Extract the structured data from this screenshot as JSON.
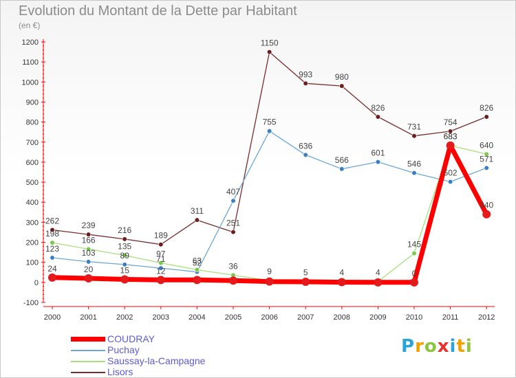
{
  "header": {
    "title": "Evolution du Montant de la Dette par Habitant",
    "subtitle": "(en €)"
  },
  "logo": {
    "letters": [
      "P",
      "r",
      "o",
      "x",
      "i",
      "t",
      "i"
    ],
    "colors": [
      "#2aa3d8",
      "#f2a100",
      "#8cc63f",
      "#e8322e",
      "#2aa3d8",
      "#f2a100",
      "#8cc63f"
    ]
  },
  "chart_data": {
    "type": "line",
    "title": "Evolution du Montant de la Dette par Habitant",
    "subtitle": "(en €)",
    "x": [
      "2000",
      "2001",
      "2002",
      "2003",
      "2004",
      "2005",
      "2006",
      "2007",
      "2008",
      "2009",
      "2010",
      "2011",
      "2012"
    ],
    "ylim": [
      -100,
      1200
    ],
    "yticks": [
      -100,
      0,
      100,
      200,
      300,
      400,
      500,
      600,
      700,
      800,
      900,
      1000,
      1100,
      1200
    ],
    "grid": false,
    "legend_position": "bottom-left",
    "series": [
      {
        "name": "COUDRAY",
        "color": "#ff0000",
        "marker": "#e41a1c",
        "emphasis": true,
        "values": [
          24,
          20,
          15,
          12,
          12,
          9,
          4,
          3,
          1,
          0,
          0,
          683,
          340
        ],
        "labels": [
          "24",
          "20",
          "15",
          "12",
          "",
          "",
          "",
          "",
          "",
          "",
          "0",
          "683",
          "340"
        ]
      },
      {
        "name": "Puchay",
        "color": "#6aa7d8",
        "marker": "#3a7fc0",
        "values": [
          123,
          103,
          89,
          71,
          52,
          407,
          755,
          636,
          566,
          601,
          546,
          502,
          571
        ],
        "labels": [
          "123",
          "103",
          "89",
          "71",
          "52",
          "407",
          "755",
          "636",
          "566",
          "601",
          "546",
          "502",
          "571"
        ]
      },
      {
        "name": "Saussay-la-Campagne",
        "color": "#a6e07a",
        "marker": "#7cc84a",
        "values": [
          198,
          166,
          135,
          97,
          63,
          36,
          9,
          5,
          4,
          4,
          145,
          683,
          640
        ],
        "labels": [
          "198",
          "166",
          "135",
          "97",
          "63",
          "36",
          "9",
          "5",
          "4",
          "4",
          "145",
          "683",
          "640"
        ]
      },
      {
        "name": "Lisors",
        "color": "#7a2a2a",
        "marker": "#6b1e1e",
        "values": [
          262,
          239,
          216,
          189,
          311,
          251,
          1150,
          993,
          980,
          826,
          731,
          754,
          826
        ],
        "labels": [
          "262",
          "239",
          "216",
          "189",
          "311",
          "251",
          "1150",
          "993",
          "980",
          "826",
          "731",
          "754",
          "826"
        ]
      }
    ]
  }
}
